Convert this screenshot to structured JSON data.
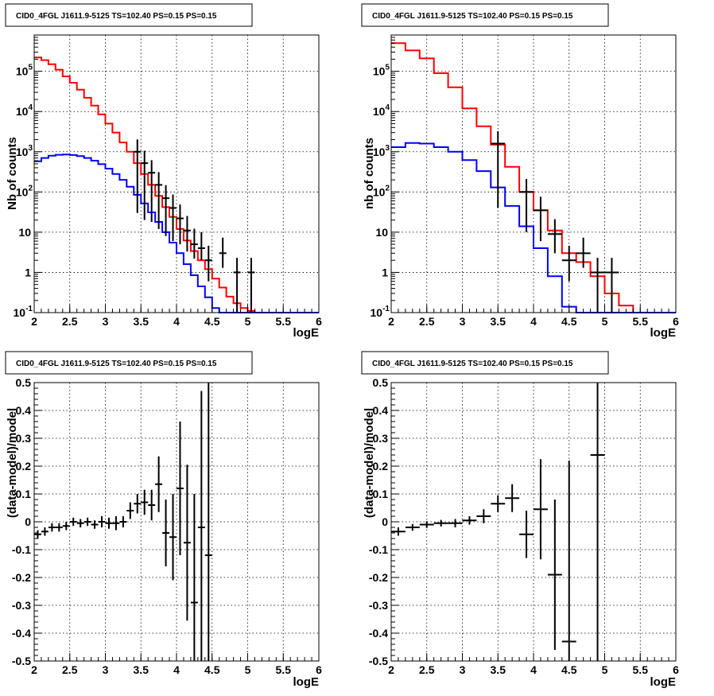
{
  "colors": {
    "data": "#000000",
    "total_model": "#ff0000",
    "source_model": "#0000ff",
    "grid": "#000000"
  },
  "chart_data": [
    {
      "type": "line",
      "y_scale": "log",
      "title": "CID0_4FGL J1611.9-5125 TS=102.40 PS=0.15 PS=0.15",
      "xlabel": "logE",
      "ylabel": "Nb of counts",
      "xlim": [
        2,
        6
      ],
      "ylim": [
        0.1,
        800000
      ],
      "grid": true,
      "x_ticks": [
        "2",
        "2.5",
        "3",
        "3.5",
        "4",
        "4.5",
        "5",
        "5.5",
        "6"
      ],
      "y_ticks": [
        "10^-1",
        "1",
        "10",
        "10^2",
        "10^3",
        "10^4",
        "10^5"
      ],
      "bin_width": 0.1,
      "series": [
        {
          "role": "total_model",
          "style": "step",
          "bin_edges": [
            2.0,
            2.1,
            2.2,
            2.3,
            2.4,
            2.5,
            2.6,
            2.7,
            2.8,
            2.9,
            3.0,
            3.1,
            3.2,
            3.3,
            3.4,
            3.5,
            3.6,
            3.7,
            3.8,
            3.9,
            4.0,
            4.1,
            4.2,
            4.3,
            4.4,
            4.5,
            4.6,
            4.7,
            4.8,
            4.9,
            5.0,
            5.1,
            5.2,
            5.3,
            5.4,
            5.5,
            5.6,
            5.7,
            5.8,
            5.9,
            6.0
          ],
          "values": [
            220000,
            190000,
            150000,
            110000,
            75000,
            52000,
            35000,
            22000,
            14000,
            8500,
            5000,
            3000,
            1700,
            1000,
            520,
            280,
            150,
            80,
            42,
            24,
            12,
            6.2,
            3.4,
            2.0,
            1.2,
            0.7,
            0.42,
            0.25,
            0.17,
            0.13,
            0.11,
            0.1,
            0.1,
            0.1,
            0.1,
            0.1,
            0.1,
            0.1,
            0.1,
            0.1
          ]
        },
        {
          "role": "source_model",
          "style": "step",
          "bin_edges": [
            2.0,
            2.1,
            2.2,
            2.3,
            2.4,
            2.5,
            2.6,
            2.7,
            2.8,
            2.9,
            3.0,
            3.1,
            3.2,
            3.3,
            3.4,
            3.5,
            3.6,
            3.7,
            3.8,
            3.9,
            4.0,
            4.1,
            4.2,
            4.3,
            4.4,
            4.5,
            4.6,
            4.7,
            4.8,
            4.9,
            5.0,
            5.1,
            5.2,
            5.3,
            5.4,
            5.5,
            5.6,
            5.7,
            5.8,
            5.9,
            6.0
          ],
          "values": [
            580,
            700,
            800,
            840,
            850,
            830,
            780,
            700,
            600,
            490,
            380,
            280,
            200,
            135,
            85,
            52,
            31,
            18,
            10,
            5.5,
            3.0,
            1.6,
            0.85,
            0.45,
            0.24,
            0.13,
            0.1,
            0.1,
            0.1,
            0.1,
            0.1,
            0.1,
            0.1,
            0.1,
            0.1,
            0.1,
            0.1,
            0.1,
            0.1,
            0.1
          ]
        },
        {
          "role": "data",
          "style": "errorbars",
          "x": [
            3.45,
            3.55,
            3.65,
            3.75,
            3.85,
            3.95,
            4.05,
            4.15,
            4.25,
            4.35,
            4.45,
            4.65,
            4.85,
            5.05
          ],
          "y": [
            1000,
            520,
            300,
            150,
            70,
            40,
            22,
            11,
            5,
            4,
            2,
            3,
            1,
            1
          ],
          "yerr_low": [
            970,
            500,
            282,
            138,
            62,
            34,
            17,
            7.7,
            2.8,
            2.0,
            1.4,
            1.7,
            0.9,
            0.9
          ],
          "yerr_high": [
            1030,
            540,
            318,
            162,
            78,
            46,
            27,
            14.3,
            7.2,
            6.0,
            2.6,
            4.3,
            1.3,
            1.3
          ],
          "xerr": 0.05
        }
      ]
    },
    {
      "type": "line",
      "y_scale": "log",
      "title": "CID0_4FGL J1611.9-5125 TS=102.40 PS=0.15 PS=0.15",
      "xlabel": "logE",
      "ylabel": "nb of counts",
      "xlim": [
        2,
        6
      ],
      "ylim": [
        0.1,
        800000
      ],
      "grid": true,
      "x_ticks": [
        "2",
        "2.5",
        "3",
        "3.5",
        "4",
        "4.5",
        "5",
        "5.5",
        "6"
      ],
      "y_ticks": [
        "10^-1",
        "1",
        "10",
        "10^2",
        "10^3",
        "10^4",
        "10^5"
      ],
      "bin_width": 0.2,
      "series": [
        {
          "role": "total_model",
          "style": "step",
          "bin_edges": [
            2.0,
            2.2,
            2.4,
            2.6,
            2.8,
            3.0,
            3.2,
            3.4,
            3.6,
            3.8,
            4.0,
            4.2,
            4.4,
            4.6,
            4.8,
            5.0,
            5.2,
            5.4,
            5.6,
            5.8,
            6.0
          ],
          "values": [
            500000,
            330000,
            210000,
            90000,
            40000,
            12000,
            4300,
            1500,
            420,
            100,
            35,
            11,
            3.0,
            1.8,
            0.8,
            0.3,
            0.15,
            0.1,
            0.1,
            0.1
          ]
        },
        {
          "role": "source_model",
          "style": "step",
          "bin_edges": [
            2.0,
            2.2,
            2.4,
            2.6,
            2.8,
            3.0,
            3.2,
            3.4,
            3.6,
            3.8,
            4.0,
            4.2,
            4.4,
            4.6,
            4.8,
            5.0,
            5.2,
            5.4,
            5.6,
            5.8,
            6.0
          ],
          "values": [
            1300,
            1650,
            1600,
            1300,
            1000,
            620,
            330,
            130,
            45,
            14,
            4,
            0.8,
            0.14,
            0.1,
            0.1,
            0.1,
            0.1,
            0.1,
            0.1,
            0.1
          ]
        },
        {
          "role": "data",
          "style": "errorbars",
          "x": [
            3.5,
            3.9,
            4.1,
            4.3,
            4.5,
            4.7,
            4.9,
            5.1
          ],
          "y": [
            1600,
            100,
            35,
            9,
            2,
            3,
            1,
            1
          ],
          "yerr_low": [
            1560,
            90,
            29,
            6,
            1.4,
            1.7,
            0.9,
            0.9
          ],
          "yerr_high": [
            1640,
            110,
            41,
            12,
            2.6,
            4.3,
            1.3,
            1.3
          ],
          "xerr": 0.1
        }
      ]
    },
    {
      "type": "scatter",
      "title": "CID0_4FGL J1611.9-5125 TS=102.40 PS=0.15 PS=0.15",
      "xlabel": "logE",
      "ylabel": "(data-model)/model",
      "xlim": [
        2,
        6
      ],
      "ylim": [
        -0.5,
        0.5
      ],
      "grid": true,
      "x_ticks": [
        "2",
        "2.5",
        "3",
        "3.5",
        "4",
        "4.5",
        "5",
        "5.5",
        "6"
      ],
      "y_ticks": [
        "-0.5",
        "-0.4",
        "-0.3",
        "-0.2",
        "-0.1",
        "0",
        "0.1",
        "0.2",
        "0.3",
        "0.4",
        "0.5"
      ],
      "series": [
        {
          "role": "data",
          "style": "errorbars",
          "x": [
            2.05,
            2.15,
            2.25,
            2.35,
            2.45,
            2.55,
            2.65,
            2.75,
            2.85,
            2.95,
            3.05,
            3.15,
            3.25,
            3.35,
            3.45,
            3.55,
            3.65,
            3.75,
            3.85,
            3.95,
            4.05,
            4.15,
            4.25,
            4.35,
            4.45
          ],
          "y": [
            -0.045,
            -0.035,
            -0.02,
            -0.02,
            -0.015,
            0.0,
            -0.005,
            0.0,
            -0.01,
            0.0,
            -0.005,
            -0.005,
            0.0,
            0.04,
            0.065,
            0.07,
            0.06,
            0.135,
            -0.04,
            -0.055,
            0.12,
            -0.075,
            -0.29,
            -0.02,
            -0.12
          ],
          "yerr": [
            0.015,
            0.015,
            0.015,
            0.015,
            0.015,
            0.015,
            0.015,
            0.015,
            0.015,
            0.02,
            0.02,
            0.025,
            0.02,
            0.03,
            0.035,
            0.045,
            0.055,
            0.1,
            0.12,
            0.155,
            0.24,
            0.28,
            0.39,
            0.49,
            0.62
          ],
          "xerr": 0.05
        }
      ]
    },
    {
      "type": "scatter",
      "title": "CID0_4FGL J1611.9-5125 TS=102.40 PS=0.15 PS=0.15",
      "xlabel": "logE",
      "ylabel": "(data-model)/model",
      "xlim": [
        2,
        6
      ],
      "ylim": [
        -0.5,
        0.5
      ],
      "grid": true,
      "x_ticks": [
        "2",
        "2.5",
        "3",
        "3.5",
        "4",
        "4.5",
        "5",
        "5.5",
        "6"
      ],
      "y_ticks": [
        "-0.5",
        "-0.4",
        "-0.3",
        "-0.2",
        "-0.1",
        "0",
        "0.1",
        "0.2",
        "0.3",
        "0.4",
        "0.5"
      ],
      "series": [
        {
          "role": "data",
          "style": "errorbars",
          "x": [
            2.1,
            2.3,
            2.5,
            2.7,
            2.9,
            3.1,
            3.3,
            3.5,
            3.7,
            3.9,
            4.1,
            4.3,
            4.5,
            4.9
          ],
          "y": [
            -0.035,
            -0.02,
            -0.01,
            -0.005,
            -0.005,
            0.005,
            0.02,
            0.065,
            0.085,
            -0.045,
            0.045,
            -0.19,
            -0.43,
            0.24
          ],
          "yerr": [
            0.015,
            0.012,
            0.012,
            0.012,
            0.015,
            0.015,
            0.025,
            0.03,
            0.05,
            0.085,
            0.18,
            0.27,
            0.65,
            0.8
          ],
          "xerr": 0.1
        }
      ]
    }
  ]
}
